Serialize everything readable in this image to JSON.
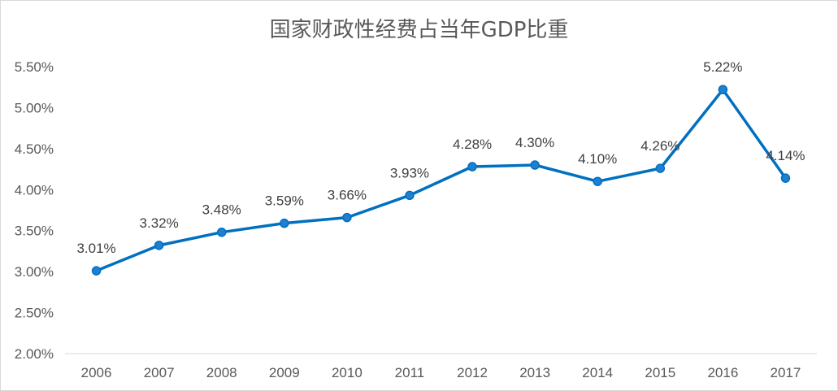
{
  "chart_data": {
    "type": "line",
    "title": "国家财政性经费占当年GDP比重",
    "xlabel": "",
    "ylabel": "",
    "categories": [
      "2006",
      "2007",
      "2008",
      "2009",
      "2010",
      "2011",
      "2012",
      "2013",
      "2014",
      "2015",
      "2016",
      "2017"
    ],
    "series": [
      {
        "values": [
          3.01,
          3.32,
          3.48,
          3.59,
          3.66,
          3.93,
          4.28,
          4.3,
          4.1,
          4.26,
          5.22,
          4.14
        ],
        "labels": [
          "3.01%",
          "3.32%",
          "3.48%",
          "3.59%",
          "3.66%",
          "3.93%",
          "4.28%",
          "4.30%",
          "4.10%",
          "4.26%",
          "5.22%",
          "4.14%"
        ]
      }
    ],
    "ylim": [
      2.0,
      5.5
    ],
    "yticks": [
      2.0,
      2.5,
      3.0,
      3.5,
      4.0,
      4.5,
      5.0,
      5.5
    ],
    "ytick_labels": [
      "2.00%",
      "2.50%",
      "3.00%",
      "3.50%",
      "4.00%",
      "4.50%",
      "5.00%",
      "5.50%"
    ],
    "grid": false,
    "legend": "none",
    "colors": {
      "line": "#0070c0",
      "axis": "#d9d9d9",
      "text": "#595959"
    }
  }
}
